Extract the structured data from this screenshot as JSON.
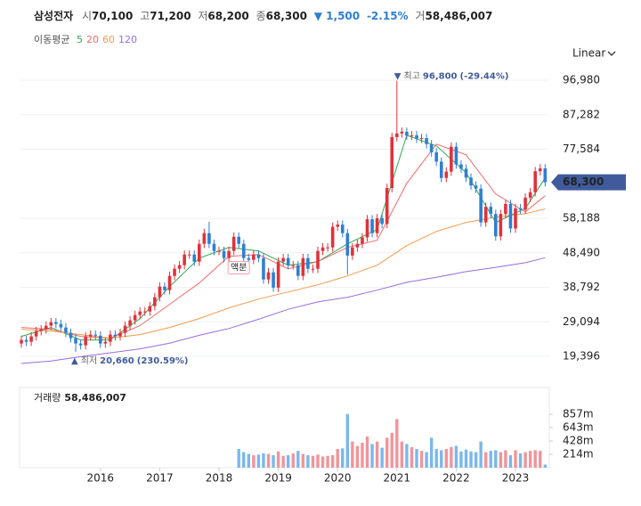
{
  "chart_data": {
    "type": "candlestick",
    "header": {
      "name": "삼성전자",
      "open_label": "시",
      "open": "70,100",
      "high_label": "고",
      "high": "71,200",
      "low_label": "저",
      "low": "68,200",
      "close_label": "종",
      "close": "68,300",
      "change": "▼ 1,500",
      "change_pct": "-2.15%",
      "volume_label": "거",
      "volume": "58,486,007"
    },
    "ma_legend_title": "이동평균",
    "scale_mode": "Linear",
    "up_color": "#e0323c",
    "down_color": "#2e7fd2",
    "up_volume_color": "#f0959b",
    "down_volume_color": "#7ab8ec",
    "badge_color": "#3f5b9c",
    "price_badge": "68,300",
    "open": [
      23000,
      24000,
      23500,
      25000,
      26500,
      27000,
      28000,
      29000,
      28500,
      27500,
      26000,
      24500,
      23000,
      22500,
      25000,
      25500,
      25200,
      23000,
      23500,
      25500,
      25000,
      26000,
      28000,
      29500,
      31000,
      32000,
      32000,
      33500,
      36000,
      39000,
      38000,
      42000,
      44000,
      45000,
      48000,
      48000,
      46000,
      51000,
      54000,
      51000,
      49000,
      49000,
      47000,
      49000,
      53000,
      51000,
      47000,
      46500,
      48000,
      47000,
      41000,
      43000,
      38700,
      46000,
      47000,
      45000,
      45000,
      42000,
      47000,
      44000,
      44000,
      49000,
      50000,
      50000,
      55800,
      56400,
      54000,
      47700,
      50000,
      51000,
      52800,
      57900,
      54000,
      58200,
      56600,
      66700,
      81000,
      82000,
      82500,
      81400,
      81500,
      80500,
      80700,
      79000,
      76700,
      74100,
      69500,
      71300,
      78300,
      73300,
      72100,
      69600,
      67400,
      66500,
      57000,
      61400,
      59400,
      53100,
      59400,
      62200,
      55300,
      61000,
      60600,
      64000,
      65500,
      71400,
      72200
    ],
    "high": [
      25200,
      25200,
      26200,
      27700,
      28200,
      29200,
      30200,
      30200,
      29700,
      28700,
      27200,
      25700,
      24200,
      26200,
      26700,
      26700,
      26400,
      24700,
      26700,
      26700,
      27200,
      29200,
      30700,
      32200,
      33200,
      33200,
      34700,
      37200,
      40200,
      40200,
      43200,
      45200,
      46200,
      49200,
      49200,
      49200,
      52200,
      55200,
      57200,
      52200,
      50200,
      50200,
      50200,
      54200,
      54200,
      52200,
      48200,
      49200,
      49200,
      48200,
      44200,
      44200,
      47200,
      48200,
      48200,
      46200,
      46200,
      48200,
      48200,
      45200,
      50200,
      51200,
      51200,
      57000,
      57600,
      57600,
      55200,
      51200,
      52200,
      54000,
      59100,
      59100,
      59400,
      59400,
      67900,
      82200,
      96800,
      83700,
      83700,
      82700,
      82700,
      81900,
      81900,
      80200,
      77900,
      75300,
      72500,
      79500,
      79500,
      74500,
      73300,
      70800,
      68600,
      67700,
      62600,
      62600,
      60600,
      60600,
      63400,
      63400,
      62200,
      62200,
      65200,
      66700,
      72600,
      73400,
      73400
    ],
    "low": [
      21800,
      22300,
      22300,
      23800,
      25300,
      25800,
      26800,
      27300,
      26300,
      24800,
      23300,
      20660,
      21300,
      21300,
      23800,
      24000,
      21800,
      21800,
      22300,
      23800,
      23800,
      24800,
      26800,
      28300,
      29800,
      30800,
      30800,
      32300,
      34800,
      36800,
      36800,
      40800,
      42800,
      43800,
      46800,
      44800,
      44800,
      49800,
      49800,
      47800,
      47800,
      45800,
      45800,
      47800,
      49800,
      45800,
      45300,
      45300,
      45800,
      39800,
      39800,
      37500,
      37500,
      44800,
      43800,
      43800,
      40800,
      40800,
      42800,
      42800,
      42800,
      47800,
      48800,
      48800,
      54600,
      52800,
      42300,
      46500,
      48800,
      49800,
      51600,
      52800,
      52800,
      55400,
      55400,
      65500,
      79800,
      80800,
      80200,
      80200,
      79300,
      79300,
      77800,
      75500,
      72900,
      68300,
      68300,
      70100,
      72100,
      70900,
      68400,
      66200,
      65300,
      55800,
      55800,
      58200,
      51900,
      51900,
      58200,
      54100,
      54100,
      59400,
      59400,
      62800,
      64300,
      70200,
      67100
    ],
    "close": [
      24000,
      23500,
      25000,
      26500,
      27000,
      28000,
      29000,
      28500,
      27500,
      26000,
      24500,
      23000,
      22500,
      25000,
      25500,
      25200,
      23000,
      23500,
      25500,
      25000,
      26000,
      28000,
      29500,
      31000,
      32000,
      32000,
      33500,
      36000,
      39000,
      38000,
      42000,
      44000,
      45000,
      48000,
      48000,
      46000,
      51000,
      54000,
      51000,
      49000,
      49000,
      47000,
      49000,
      53000,
      51000,
      47000,
      46500,
      48000,
      47000,
      41000,
      43000,
      38700,
      46000,
      47000,
      45000,
      45000,
      42000,
      47000,
      44000,
      44000,
      49000,
      50000,
      50000,
      55800,
      56400,
      54000,
      47700,
      50000,
      51000,
      52800,
      57900,
      54000,
      58200,
      56600,
      66700,
      81000,
      82000,
      82500,
      81400,
      81500,
      80500,
      80700,
      79000,
      76700,
      74100,
      69500,
      71300,
      78300,
      73300,
      72100,
      69600,
      67400,
      66500,
      57000,
      61400,
      59400,
      53100,
      59400,
      62200,
      55300,
      61000,
      60600,
      64000,
      65500,
      71400,
      72200,
      68300
    ],
    "volume_title": "거래량",
    "volume_value": "58,486,007",
    "volume": [
      null,
      null,
      null,
      null,
      null,
      null,
      null,
      null,
      null,
      null,
      null,
      null,
      null,
      null,
      null,
      null,
      null,
      null,
      null,
      null,
      null,
      null,
      null,
      null,
      null,
      null,
      null,
      null,
      null,
      null,
      null,
      null,
      null,
      null,
      null,
      null,
      null,
      null,
      null,
      null,
      null,
      null,
      null,
      null,
      300000000,
      250000000,
      220000000,
      200000000,
      210000000,
      230000000,
      220000000,
      200000000,
      260000000,
      190000000,
      200000000,
      230000000,
      270000000,
      220000000,
      200000000,
      190000000,
      210000000,
      180000000,
      190000000,
      200000000,
      300000000,
      310000000,
      860000000,
      420000000,
      350000000,
      400000000,
      500000000,
      380000000,
      420000000,
      320000000,
      480000000,
      560000000,
      780000000,
      420000000,
      380000000,
      330000000,
      300000000,
      270000000,
      250000000,
      480000000,
      300000000,
      280000000,
      300000000,
      330000000,
      350000000,
      260000000,
      290000000,
      260000000,
      250000000,
      420000000,
      250000000,
      270000000,
      280000000,
      250000000,
      280000000,
      200000000,
      280000000,
      230000000,
      250000000,
      270000000,
      280000000,
      270000000,
      50000000
    ],
    "ma_x": [
      0,
      6,
      12,
      18,
      24,
      30,
      36,
      42,
      48,
      54,
      60,
      66,
      72,
      78,
      84,
      90,
      96,
      102,
      106
    ],
    "moving_averages": [
      {
        "name": "5",
        "color": "#2eaa4a",
        "values": [
          25000,
          27500,
          24000,
          24000,
          30000,
          39000,
          47000,
          50000,
          49000,
          45000,
          46000,
          51000,
          55000,
          81500,
          78500,
          71000,
          57000,
          61000,
          69500
        ]
      },
      {
        "name": "20",
        "color": "#f06a6a",
        "values": [
          27500,
          27000,
          25000,
          24500,
          28000,
          34000,
          40000,
          47500,
          48000,
          44000,
          46000,
          50000,
          52000,
          68000,
          79000,
          76000,
          65000,
          60000,
          64500
        ]
      },
      {
        "name": "60",
        "color": "#f59a4a",
        "values": [
          27000,
          26500,
          25500,
          24500,
          25500,
          27500,
          30000,
          33000,
          35500,
          37500,
          39500,
          42000,
          45000,
          50500,
          54500,
          57000,
          58500,
          59500,
          60800
        ]
      },
      {
        "name": "120",
        "color": "#9b6be0",
        "values": [
          17400,
          18100,
          19300,
          20400,
          21500,
          23100,
          25300,
          27200,
          29800,
          32600,
          34700,
          36000,
          38000,
          40200,
          41600,
          43200,
          44400,
          45700,
          47100
        ]
      }
    ],
    "high_annotation": {
      "marker": "▼",
      "text": "최고",
      "value_label": "96,800",
      "change_label": "(-29.44%)"
    },
    "low_annotation": {
      "marker": "▲",
      "text": "최저",
      "value_label": "20,660",
      "change_label": "(230.59%)"
    },
    "split_annotation": {
      "text": "액분",
      "index": 44
    },
    "ylim": [
      19396,
      96980
    ],
    "yticks": [
      {
        "value": 96980,
        "label": "96,980"
      },
      {
        "value": 87282,
        "label": "87,282"
      },
      {
        "value": 77584,
        "label": "77,584"
      },
      {
        "value": 58188,
        "label": "58,188"
      },
      {
        "value": 48490,
        "label": "48,490"
      },
      {
        "value": 38792,
        "label": "38,792"
      },
      {
        "value": 29094,
        "label": "29,094"
      },
      {
        "value": 19396,
        "label": "19,396"
      }
    ],
    "volume_ylim": [
      0,
      857000000
    ],
    "volume_ticks": [
      {
        "value": 857000000,
        "label": "857m"
      },
      {
        "value": 643000000,
        "label": "643m"
      },
      {
        "value": 428000000,
        "label": "428m"
      },
      {
        "value": 214000000,
        "label": "214m"
      }
    ],
    "xticks": [
      {
        "value": 16,
        "label": "2016"
      },
      {
        "value": 28,
        "label": "2017"
      },
      {
        "value": 40,
        "label": "2018"
      },
      {
        "value": 52,
        "label": "2019"
      },
      {
        "value": 64,
        "label": "2020"
      },
      {
        "value": 76,
        "label": "2021"
      },
      {
        "value": 88,
        "label": "2022"
      },
      {
        "value": 100,
        "label": "2023"
      }
    ],
    "grid": true
  }
}
